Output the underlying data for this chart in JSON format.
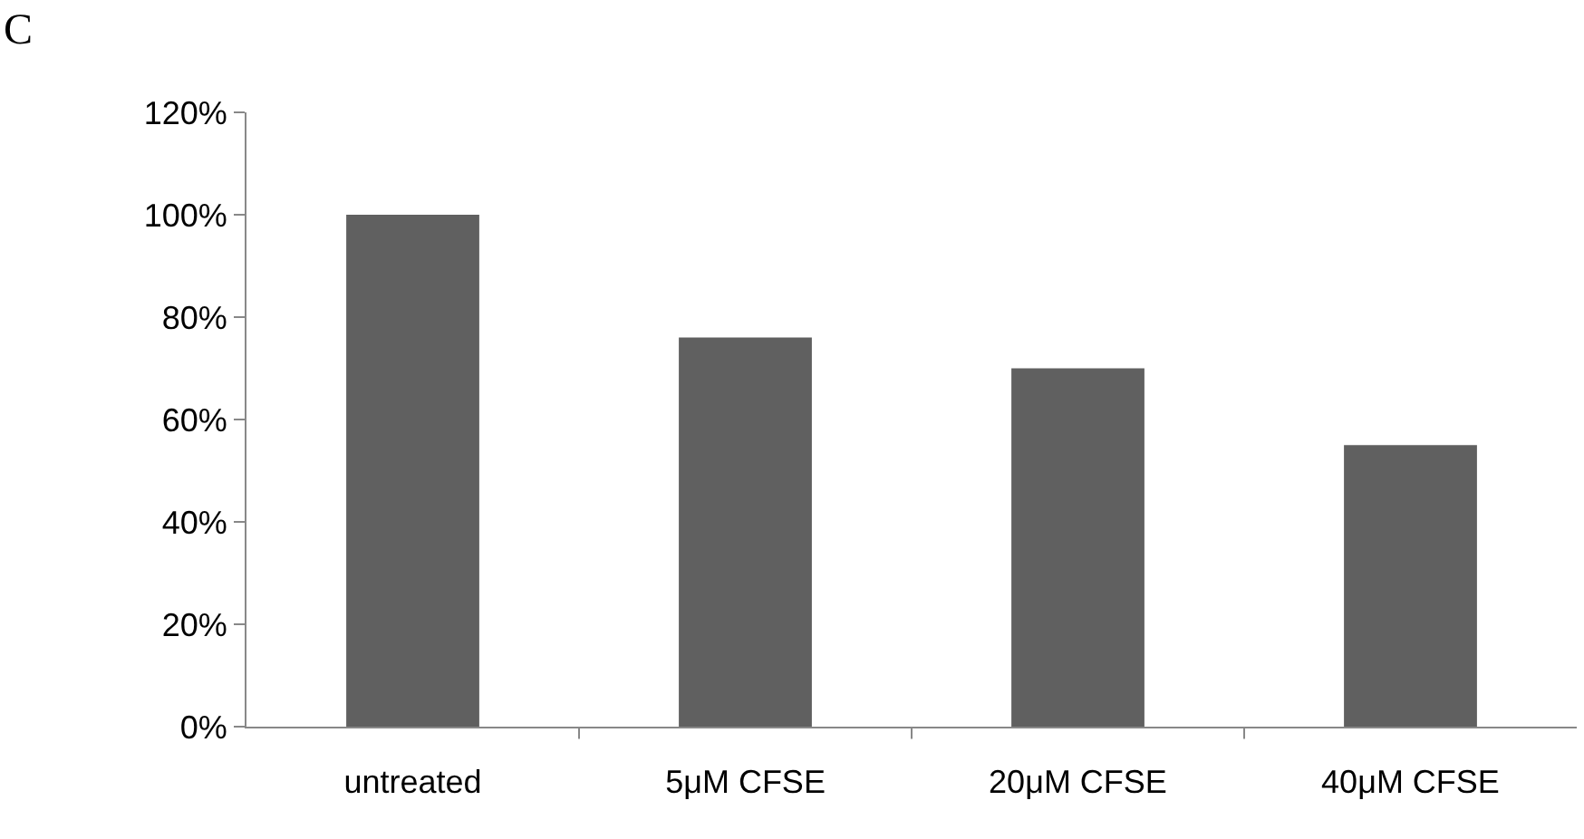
{
  "chart_data": {
    "type": "bar",
    "annotations": [
      "C"
    ],
    "categories": [
      "untreated",
      "5μM CFSE",
      "20μM CFSE",
      "40μM CFSE"
    ],
    "values": [
      100,
      76,
      70,
      55
    ],
    "color": "#606060",
    "ylim": [
      0,
      120
    ],
    "yticks": [
      {
        "value": 0,
        "label": "0%"
      },
      {
        "value": 20,
        "label": "20%"
      },
      {
        "value": 40,
        "label": "40%"
      },
      {
        "value": 60,
        "label": "60%"
      },
      {
        "value": 80,
        "label": "80%"
      },
      {
        "value": 100,
        "label": "100%"
      },
      {
        "value": 120,
        "label": "120%"
      }
    ],
    "grid": false,
    "legend": false
  }
}
